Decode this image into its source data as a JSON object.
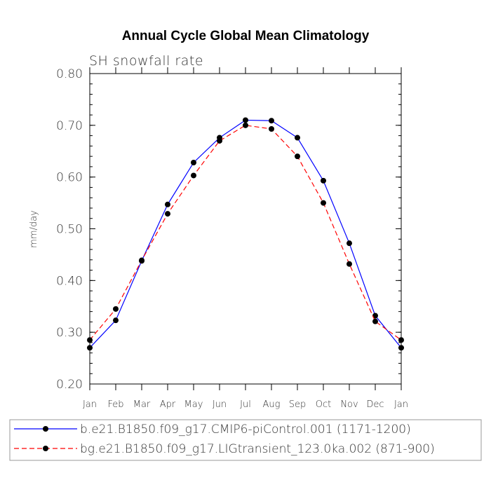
{
  "chart_data": {
    "type": "line",
    "title": "Annual Cycle Global Mean Climatology",
    "subtitle": "SH snowfall rate",
    "xlabel": "",
    "ylabel": "mm/day",
    "categories": [
      "Jan",
      "Feb",
      "Mar",
      "Apr",
      "May",
      "Jun",
      "Jul",
      "Aug",
      "Sep",
      "Oct",
      "Nov",
      "Dec",
      "Jan"
    ],
    "ylim": [
      0.2,
      0.8
    ],
    "yticks": [
      "0.20",
      "0.30",
      "0.40",
      "0.50",
      "0.60",
      "0.70",
      "0.80"
    ],
    "legend_position": "bottom",
    "series": [
      {
        "name": "b.e21.B1850.f09_g17.CMIP6-piControl.001 (1171-1200)",
        "color": "#0000ff",
        "line_style": "solid",
        "values": [
          0.27,
          0.323,
          0.438,
          0.547,
          0.628,
          0.676,
          0.71,
          0.709,
          0.676,
          0.593,
          0.472,
          0.332,
          0.27
        ]
      },
      {
        "name": "bg.e21.B1850.f09_g17.LIGtransient_123.0ka.002 (871-900)",
        "color": "#ff0000",
        "line_style": "dashed",
        "values": [
          0.285,
          0.345,
          0.439,
          0.529,
          0.603,
          0.67,
          0.7,
          0.693,
          0.64,
          0.55,
          0.432,
          0.321,
          0.285
        ]
      }
    ]
  }
}
